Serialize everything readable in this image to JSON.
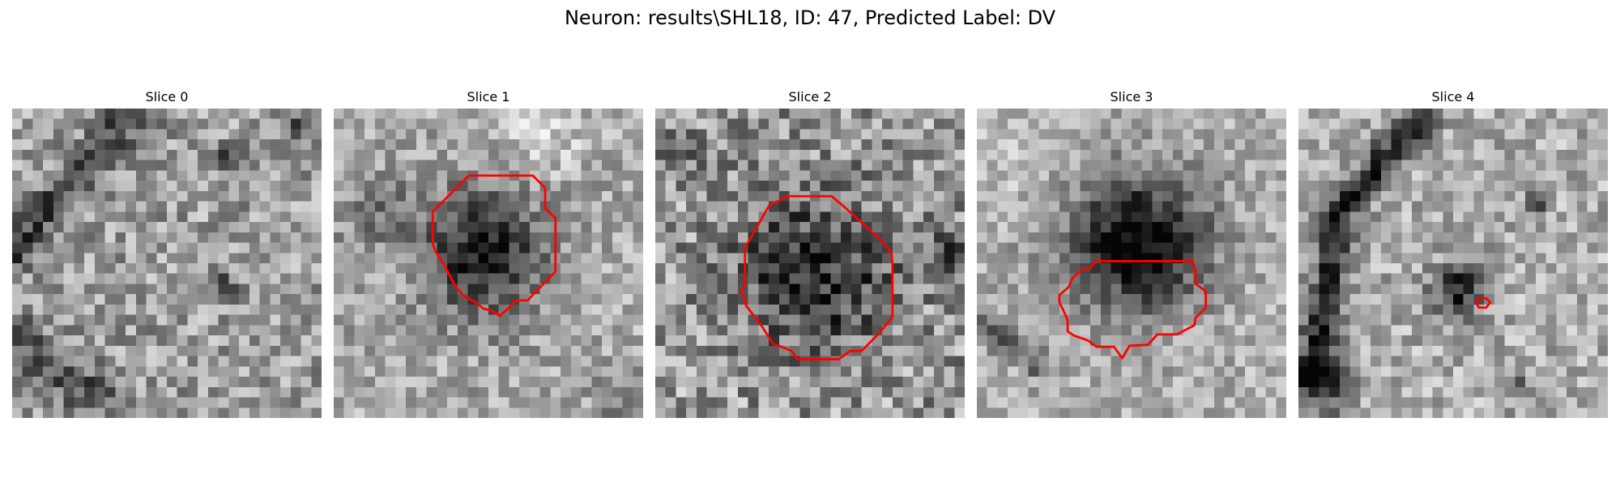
{
  "figure": {
    "title": "Neuron: results\\SHL18, ID: 47, Predicted Label: DV"
  },
  "colors": {
    "contour": "#ff0000",
    "background": "#ffffff"
  },
  "panels": [
    {
      "label": "Slice 0"
    },
    {
      "label": "Slice 1"
    },
    {
      "label": "Slice 2"
    },
    {
      "label": "Slice 3"
    },
    {
      "label": "Slice 4"
    }
  ]
}
